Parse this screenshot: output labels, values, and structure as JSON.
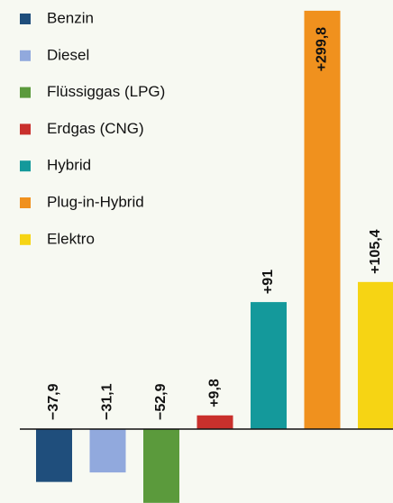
{
  "chart_data": {
    "type": "bar",
    "categories": [
      "Benzin",
      "Diesel",
      "Flüssiggas (LPG)",
      "Erdgas (CNG)",
      "Hybrid",
      "Plug-in-Hybrid",
      "Elektro"
    ],
    "values": [
      -37.9,
      -31.1,
      -52.9,
      9.8,
      91,
      299.8,
      105.4
    ],
    "value_labels": [
      "−37,9",
      "−31,1",
      "−52,9",
      "+9,8",
      "+91",
      "+299,8",
      "+105,4"
    ],
    "colors": [
      "#1f4e7c",
      "#91a9dd",
      "#5b9a3c",
      "#c9302c",
      "#14999b",
      "#f0911e",
      "#f6d414"
    ],
    "ylim": [
      -53,
      307.5
    ]
  }
}
